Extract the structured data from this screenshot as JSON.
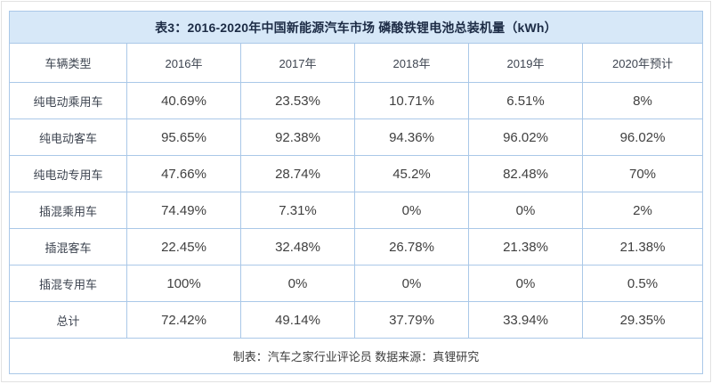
{
  "table": {
    "title": "表3：2016-2020年中国新能源汽车市场 磷酸铁锂电池总装机量（kWh）",
    "columns": [
      "车辆类型",
      "2016年",
      "2017年",
      "2018年",
      "2019年",
      "2020年预计"
    ],
    "rows": [
      {
        "label": "纯电动乘用车",
        "values": [
          "40.69%",
          "23.53%",
          "10.71%",
          "6.51%",
          "8%"
        ]
      },
      {
        "label": "纯电动客车",
        "values": [
          "95.65%",
          "92.38%",
          "94.36%",
          "96.02%",
          "96.02%"
        ]
      },
      {
        "label": "纯电动专用车",
        "values": [
          "47.66%",
          "28.74%",
          "45.2%",
          "82.48%",
          "70%"
        ]
      },
      {
        "label": "插混乘用车",
        "values": [
          "74.49%",
          "7.31%",
          "0%",
          "0%",
          "2%"
        ]
      },
      {
        "label": "插混客车",
        "values": [
          "22.45%",
          "32.48%",
          "26.78%",
          "21.38%",
          "21.38%"
        ]
      },
      {
        "label": "插混专用车",
        "values": [
          "100%",
          "0%",
          "0%",
          "0%",
          "0.5%"
        ]
      },
      {
        "label": "总计",
        "values": [
          "72.42%",
          "49.14%",
          "37.79%",
          "33.94%",
          "29.35%"
        ]
      }
    ],
    "footer": "制表：汽车之家行业评论员 数据来源：真锂研究",
    "colors": {
      "title_bg": "#d7e8f8",
      "border": "#aac8e8",
      "title_text": "#1c2b45",
      "cell_text": "#404040"
    }
  }
}
